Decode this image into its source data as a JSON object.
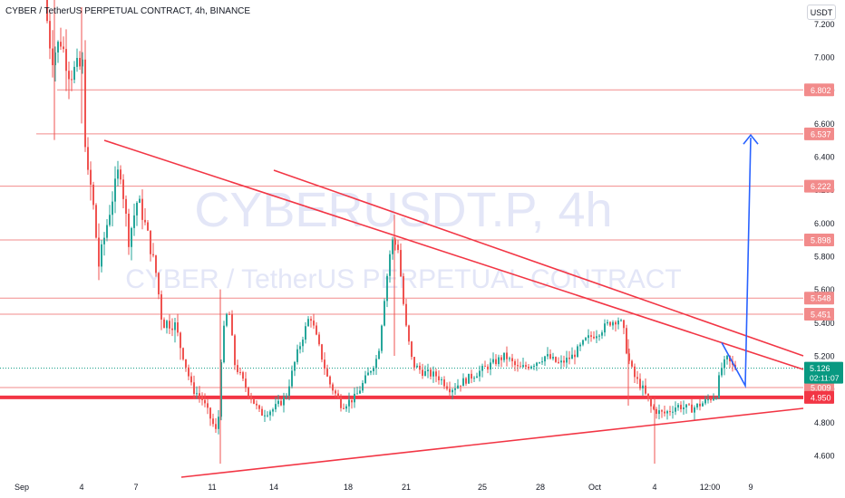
{
  "header": {
    "title": "CYBER / TetherUS PERPETUAL CONTRACT, 4h, BINANCE",
    "currency_button": "USDT"
  },
  "watermark": {
    "line1": "CYBERUSDT.P, 4h",
    "line2": "CYBER / TetherUS PERPETUAL CONTRACT"
  },
  "colors": {
    "up": "#26a69a",
    "down": "#ef5350",
    "trendline": "#f23645",
    "level": "#f28b8b",
    "arrow": "#2962ff",
    "price_tag": "#089981"
  },
  "chart_data": {
    "type": "candlestick",
    "y_ticks": [
      "7.200",
      "7.000",
      "6.800",
      "6.600",
      "6.400",
      "6.200",
      "6.000",
      "5.800",
      "5.600",
      "5.400",
      "5.200",
      "5.000",
      "4.800",
      "4.600"
    ],
    "x_ticks": [
      "Sep",
      "4",
      "7",
      "11",
      "14",
      "18",
      "21",
      "25",
      "28",
      "Oct",
      "4",
      "12:00",
      "9"
    ],
    "ylim": [
      4.5,
      7.2
    ],
    "horizontal_levels": [
      {
        "price": 6.802,
        "label": "6.802"
      },
      {
        "price": 6.537,
        "label": "6.537"
      },
      {
        "price": 6.222,
        "label": "6.222"
      },
      {
        "price": 5.898,
        "label": "5.898"
      },
      {
        "price": 5.548,
        "label": "5.548"
      },
      {
        "price": 5.451,
        "label": "5.451"
      },
      {
        "price": 5.009,
        "label": "5.009"
      },
      {
        "price": 4.95,
        "label": "4.950",
        "bold": true
      }
    ],
    "last_price": {
      "price": 5.126,
      "label": "5.126",
      "countdown": "02:11:07"
    },
    "trendlines": [
      {
        "from": [
          "Sep 4",
          6.5
        ],
        "to": [
          "Oct 9",
          5.1
        ]
      },
      {
        "from": [
          "Sep 15",
          6.31
        ],
        "to": [
          "Oct 9",
          5.18
        ]
      },
      {
        "from": [
          "Sep 9",
          4.53
        ],
        "to": [
          "Oct 9",
          4.88
        ]
      }
    ],
    "projection": {
      "points": [
        [
          5.28,
          5.02
        ],
        [
          5.02,
          6.53
        ]
      ],
      "description": "bounce from 5.009 breakout target 6.537"
    }
  }
}
